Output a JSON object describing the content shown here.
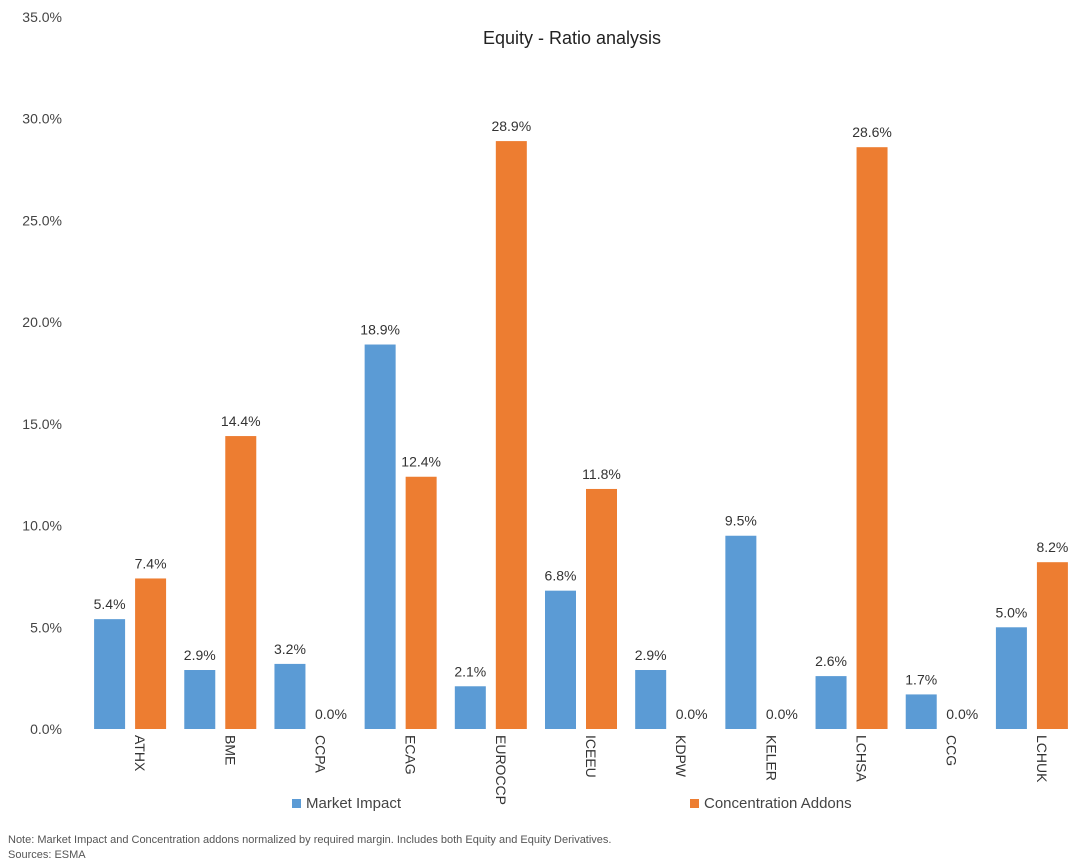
{
  "colors": {
    "market_impact": "#5b9bd5",
    "concentration_addons": "#ed7d31"
  },
  "chart_data": {
    "type": "bar",
    "title": "Equity - Ratio analysis",
    "categories": [
      "ATHX",
      "BME",
      "CCPA",
      "ECAG",
      "EUROCCP",
      "ICEEU",
      "KDPW",
      "KELER",
      "LCHSA",
      "CCG",
      "LCHUK"
    ],
    "series": [
      {
        "name": "Market Impact",
        "values": [
          5.4,
          2.9,
          3.2,
          18.9,
          2.1,
          6.8,
          2.9,
          9.5,
          2.6,
          1.7,
          5.0
        ]
      },
      {
        "name": "Concentration Addons",
        "values": [
          7.4,
          14.4,
          0.0,
          12.4,
          28.9,
          11.8,
          0.0,
          0.0,
          28.6,
          0.0,
          8.2
        ]
      }
    ],
    "ylim": [
      0,
      35
    ],
    "yticks": [
      "0.0%",
      "5.0%",
      "10.0%",
      "15.0%",
      "20.0%",
      "25.0%",
      "30.0%",
      "35.0%"
    ],
    "value_format": "percent_1dp",
    "legend_position": "bottom",
    "grid": false
  },
  "notes": {
    "note": "Note: Market Impact and Concentration addons normalized by required margin. Includes both Equity and Equity Derivatives.",
    "sources": "Sources: ESMA"
  }
}
